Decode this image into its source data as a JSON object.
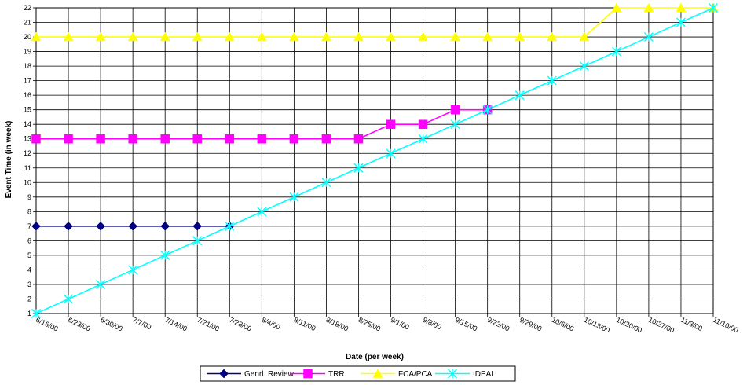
{
  "chart_data": {
    "type": "line",
    "title": "",
    "xlabel": "Date (per week)",
    "ylabel": "Event Time (in week)",
    "ylim": [
      1,
      22
    ],
    "yticks": [
      1,
      2,
      3,
      4,
      5,
      6,
      7,
      8,
      9,
      10,
      11,
      12,
      13,
      14,
      15,
      16,
      17,
      18,
      19,
      20,
      21,
      22
    ],
    "grid": true,
    "legend_position": "bottom",
    "categories": [
      "6/16/00",
      "6/23/00",
      "6/30/00",
      "7/7/00",
      "7/14/00",
      "7/21/00",
      "7/28/00",
      "8/4/00",
      "8/11/00",
      "8/18/00",
      "8/25/00",
      "9/1/00",
      "9/8/00",
      "9/15/00",
      "9/22/00",
      "9/29/00",
      "10/6/00",
      "10/13/00",
      "10/20/00",
      "10/27/00",
      "11/3/00",
      "11/10/00"
    ],
    "series": [
      {
        "name": "Genrl. Review",
        "color": "#000080",
        "marker": "diamond",
        "values": [
          7,
          7,
          7,
          7,
          7,
          7,
          7,
          null,
          null,
          null,
          null,
          null,
          null,
          null,
          null,
          null,
          null,
          null,
          null,
          null,
          null,
          null
        ]
      },
      {
        "name": "TRR",
        "color": "#FF00FF",
        "marker": "square",
        "values": [
          13,
          13,
          13,
          13,
          13,
          13,
          13,
          13,
          13,
          13,
          13,
          14,
          14,
          15,
          15,
          null,
          null,
          null,
          null,
          null,
          null,
          null
        ]
      },
      {
        "name": "FCA/PCA",
        "color": "#FFFF00",
        "marker": "triangle",
        "values": [
          20,
          20,
          20,
          20,
          20,
          20,
          20,
          20,
          20,
          20,
          20,
          20,
          20,
          20,
          20,
          20,
          20,
          20,
          22,
          22,
          22,
          22
        ]
      },
      {
        "name": "IDEAL",
        "color": "#00FFFF",
        "marker": "x",
        "values": [
          1,
          2,
          3,
          4,
          5,
          6,
          7,
          8,
          9,
          10,
          11,
          12,
          13,
          14,
          15,
          16,
          17,
          18,
          19,
          20,
          21,
          22
        ]
      }
    ]
  }
}
